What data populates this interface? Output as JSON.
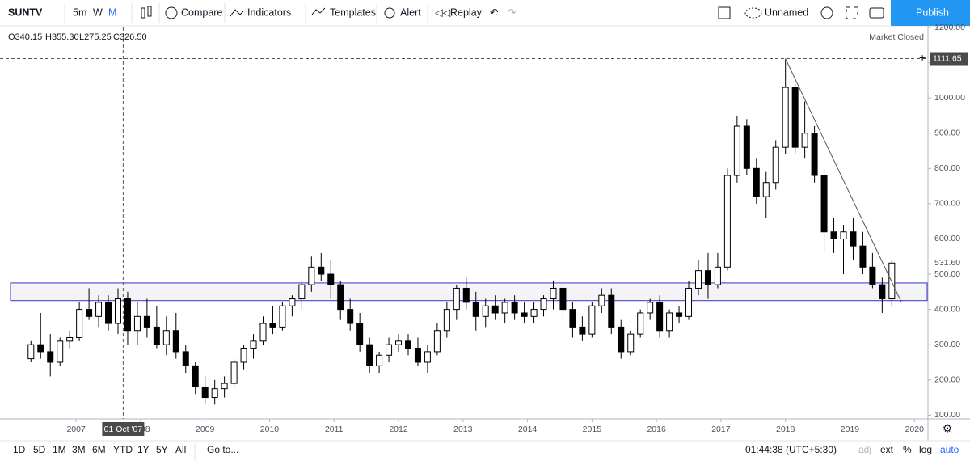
{
  "toolbar": {
    "symbol": "SUNTV",
    "intervals": [
      "5m",
      "W",
      "M"
    ],
    "compare": "Compare",
    "indicators": "Indicators",
    "templates": "Templates",
    "alert": "Alert",
    "replay": "Replay",
    "layout": "Unnamed",
    "publish": "Publish"
  },
  "legend": {
    "open": "O340.15",
    "high": "H355.30",
    "low": "L275.25",
    "close": "C326.50",
    "status": "Market Closed"
  },
  "bottombar": {
    "ranges": [
      "1D",
      "5D",
      "1M",
      "3M",
      "6M",
      "YTD",
      "1Y",
      "5Y",
      "All"
    ],
    "goto": "Go to...",
    "clock": "01:44:38 (UTC+5:30)",
    "options": [
      "adj",
      "ext",
      "%",
      "log",
      "auto"
    ]
  },
  "chart_data": {
    "type": "candlestick",
    "xlim": [
      2005.82,
      2020.21
    ],
    "xticks": [
      2007,
      2008,
      2009,
      2010,
      2011,
      2012,
      2013,
      2014,
      2015,
      2016,
      2017,
      2018,
      2019,
      2020
    ],
    "ylim": [
      89.3,
      1200
    ],
    "yticks": [
      {
        "value": 100,
        "label": "100.00"
      },
      {
        "value": 200,
        "label": "200.00"
      },
      {
        "value": 300,
        "label": "300.00"
      },
      {
        "value": 400,
        "label": "400.00"
      },
      {
        "value": 500,
        "label": "500.00"
      },
      {
        "value": 600,
        "label": "600.00"
      },
      {
        "value": 700,
        "label": "700.00"
      },
      {
        "value": 800,
        "label": "800.00"
      },
      {
        "value": 900,
        "label": "900.00"
      },
      {
        "value": 1000,
        "label": "1000.00"
      },
      {
        "value": 1100,
        "label": "1100.00"
      },
      {
        "value": 1200,
        "label": "1200.00"
      }
    ],
    "grid": false,
    "up_color": "#ffffff",
    "down_color": "#000000",
    "zone": {
      "low": 425,
      "high": 475,
      "color": "#3333cc"
    },
    "high_line": {
      "value": 1111.65,
      "label": "1111.65"
    },
    "last_price": {
      "value": 531.6,
      "label": "531.60"
    },
    "trendline": {
      "x": [
        2018.0,
        2019.8
      ],
      "y": [
        1111.65,
        420
      ],
      "color": "#555555"
    },
    "crosshair": {
      "x": 2007.73,
      "label": "01 Oct '07"
    },
    "candles": [
      {
        "x": 2006.3,
        "open": 260,
        "high": 310,
        "low": 250,
        "close": 300
      },
      {
        "x": 2006.45,
        "open": 300,
        "high": 390,
        "low": 260,
        "close": 280
      },
      {
        "x": 2006.6,
        "open": 280,
        "high": 330,
        "low": 210,
        "close": 250
      },
      {
        "x": 2006.75,
        "open": 250,
        "high": 320,
        "low": 240,
        "close": 310
      },
      {
        "x": 2006.9,
        "open": 310,
        "high": 340,
        "low": 290,
        "close": 320
      },
      {
        "x": 2007.05,
        "open": 320,
        "high": 420,
        "low": 310,
        "close": 400
      },
      {
        "x": 2007.2,
        "open": 400,
        "high": 460,
        "low": 370,
        "close": 380
      },
      {
        "x": 2007.35,
        "open": 380,
        "high": 440,
        "low": 350,
        "close": 420
      },
      {
        "x": 2007.5,
        "open": 420,
        "high": 440,
        "low": 340,
        "close": 360
      },
      {
        "x": 2007.65,
        "open": 360,
        "high": 460,
        "low": 330,
        "close": 430
      },
      {
        "x": 2007.8,
        "open": 430,
        "high": 450,
        "low": 300,
        "close": 340
      },
      {
        "x": 2007.95,
        "open": 340,
        "high": 420,
        "low": 300,
        "close": 380
      },
      {
        "x": 2008.1,
        "open": 380,
        "high": 430,
        "low": 320,
        "close": 350
      },
      {
        "x": 2008.25,
        "open": 350,
        "high": 410,
        "low": 290,
        "close": 300
      },
      {
        "x": 2008.4,
        "open": 300,
        "high": 380,
        "low": 270,
        "close": 340
      },
      {
        "x": 2008.55,
        "open": 340,
        "high": 390,
        "low": 260,
        "close": 280
      },
      {
        "x": 2008.7,
        "open": 280,
        "high": 300,
        "low": 220,
        "close": 240
      },
      {
        "x": 2008.85,
        "open": 240,
        "high": 250,
        "low": 160,
        "close": 180
      },
      {
        "x": 2009.0,
        "open": 180,
        "high": 210,
        "low": 130,
        "close": 150
      },
      {
        "x": 2009.15,
        "open": 150,
        "high": 200,
        "low": 130,
        "close": 175
      },
      {
        "x": 2009.3,
        "open": 175,
        "high": 210,
        "low": 150,
        "close": 190
      },
      {
        "x": 2009.45,
        "open": 190,
        "high": 260,
        "low": 180,
        "close": 250
      },
      {
        "x": 2009.6,
        "open": 250,
        "high": 300,
        "low": 230,
        "close": 290
      },
      {
        "x": 2009.75,
        "open": 290,
        "high": 330,
        "low": 260,
        "close": 310
      },
      {
        "x": 2009.9,
        "open": 310,
        "high": 380,
        "low": 300,
        "close": 360
      },
      {
        "x": 2010.05,
        "open": 360,
        "high": 410,
        "low": 330,
        "close": 350
      },
      {
        "x": 2010.2,
        "open": 350,
        "high": 420,
        "low": 340,
        "close": 410
      },
      {
        "x": 2010.35,
        "open": 410,
        "high": 440,
        "low": 380,
        "close": 430
      },
      {
        "x": 2010.5,
        "open": 430,
        "high": 480,
        "low": 400,
        "close": 470
      },
      {
        "x": 2010.65,
        "open": 470,
        "high": 550,
        "low": 450,
        "close": 520
      },
      {
        "x": 2010.8,
        "open": 520,
        "high": 560,
        "low": 480,
        "close": 500
      },
      {
        "x": 2010.95,
        "open": 500,
        "high": 540,
        "low": 430,
        "close": 470
      },
      {
        "x": 2011.1,
        "open": 470,
        "high": 480,
        "low": 370,
        "close": 400
      },
      {
        "x": 2011.25,
        "open": 400,
        "high": 430,
        "low": 340,
        "close": 360
      },
      {
        "x": 2011.4,
        "open": 360,
        "high": 390,
        "low": 280,
        "close": 300
      },
      {
        "x": 2011.55,
        "open": 300,
        "high": 320,
        "low": 220,
        "close": 240
      },
      {
        "x": 2011.7,
        "open": 240,
        "high": 280,
        "low": 220,
        "close": 270
      },
      {
        "x": 2011.85,
        "open": 270,
        "high": 320,
        "low": 250,
        "close": 300
      },
      {
        "x": 2012.0,
        "open": 300,
        "high": 330,
        "low": 280,
        "close": 310
      },
      {
        "x": 2012.15,
        "open": 310,
        "high": 330,
        "low": 270,
        "close": 290
      },
      {
        "x": 2012.3,
        "open": 290,
        "high": 320,
        "low": 240,
        "close": 250
      },
      {
        "x": 2012.45,
        "open": 250,
        "high": 300,
        "low": 220,
        "close": 280
      },
      {
        "x": 2012.6,
        "open": 280,
        "high": 360,
        "low": 270,
        "close": 340
      },
      {
        "x": 2012.75,
        "open": 340,
        "high": 420,
        "low": 320,
        "close": 400
      },
      {
        "x": 2012.9,
        "open": 400,
        "high": 470,
        "low": 370,
        "close": 460
      },
      {
        "x": 2013.05,
        "open": 460,
        "high": 490,
        "low": 400,
        "close": 420
      },
      {
        "x": 2013.2,
        "open": 420,
        "high": 450,
        "low": 340,
        "close": 380
      },
      {
        "x": 2013.35,
        "open": 380,
        "high": 430,
        "low": 350,
        "close": 410
      },
      {
        "x": 2013.5,
        "open": 410,
        "high": 440,
        "low": 370,
        "close": 390
      },
      {
        "x": 2013.65,
        "open": 390,
        "high": 430,
        "low": 360,
        "close": 420
      },
      {
        "x": 2013.8,
        "open": 420,
        "high": 440,
        "low": 370,
        "close": 390
      },
      {
        "x": 2013.95,
        "open": 390,
        "high": 420,
        "low": 360,
        "close": 380
      },
      {
        "x": 2014.1,
        "open": 380,
        "high": 420,
        "low": 360,
        "close": 400
      },
      {
        "x": 2014.25,
        "open": 400,
        "high": 440,
        "low": 380,
        "close": 430
      },
      {
        "x": 2014.4,
        "open": 430,
        "high": 480,
        "low": 400,
        "close": 460
      },
      {
        "x": 2014.55,
        "open": 460,
        "high": 470,
        "low": 380,
        "close": 400
      },
      {
        "x": 2014.7,
        "open": 400,
        "high": 420,
        "low": 320,
        "close": 350
      },
      {
        "x": 2014.85,
        "open": 350,
        "high": 380,
        "low": 310,
        "close": 330
      },
      {
        "x": 2015.0,
        "open": 330,
        "high": 420,
        "low": 320,
        "close": 410
      },
      {
        "x": 2015.15,
        "open": 410,
        "high": 460,
        "low": 390,
        "close": 440
      },
      {
        "x": 2015.3,
        "open": 440,
        "high": 460,
        "low": 330,
        "close": 350
      },
      {
        "x": 2015.45,
        "open": 350,
        "high": 370,
        "low": 260,
        "close": 280
      },
      {
        "x": 2015.6,
        "open": 280,
        "high": 340,
        "low": 270,
        "close": 330
      },
      {
        "x": 2015.75,
        "open": 330,
        "high": 400,
        "low": 320,
        "close": 390
      },
      {
        "x": 2015.9,
        "open": 390,
        "high": 430,
        "low": 370,
        "close": 420
      },
      {
        "x": 2016.05,
        "open": 420,
        "high": 440,
        "low": 320,
        "close": 340
      },
      {
        "x": 2016.2,
        "open": 340,
        "high": 400,
        "low": 320,
        "close": 390
      },
      {
        "x": 2016.35,
        "open": 390,
        "high": 410,
        "low": 360,
        "close": 380
      },
      {
        "x": 2016.5,
        "open": 380,
        "high": 480,
        "low": 370,
        "close": 460
      },
      {
        "x": 2016.65,
        "open": 460,
        "high": 540,
        "low": 440,
        "close": 510
      },
      {
        "x": 2016.8,
        "open": 510,
        "high": 560,
        "low": 430,
        "close": 470
      },
      {
        "x": 2016.95,
        "open": 470,
        "high": 560,
        "low": 460,
        "close": 520
      },
      {
        "x": 2017.1,
        "open": 520,
        "high": 800,
        "low": 510,
        "close": 780
      },
      {
        "x": 2017.25,
        "open": 780,
        "high": 950,
        "low": 760,
        "close": 920
      },
      {
        "x": 2017.4,
        "open": 920,
        "high": 940,
        "low": 780,
        "close": 800
      },
      {
        "x": 2017.55,
        "open": 800,
        "high": 830,
        "low": 700,
        "close": 720
      },
      {
        "x": 2017.7,
        "open": 720,
        "high": 790,
        "low": 660,
        "close": 760
      },
      {
        "x": 2017.85,
        "open": 760,
        "high": 880,
        "low": 740,
        "close": 860
      },
      {
        "x": 2018.0,
        "open": 860,
        "high": 1111.65,
        "low": 840,
        "close": 1030
      },
      {
        "x": 2018.15,
        "open": 1030,
        "high": 1040,
        "low": 840,
        "close": 860
      },
      {
        "x": 2018.3,
        "open": 860,
        "high": 990,
        "low": 830,
        "close": 900
      },
      {
        "x": 2018.45,
        "open": 900,
        "high": 920,
        "low": 760,
        "close": 780
      },
      {
        "x": 2018.6,
        "open": 780,
        "high": 800,
        "low": 560,
        "close": 620
      },
      {
        "x": 2018.75,
        "open": 620,
        "high": 660,
        "low": 560,
        "close": 600
      },
      {
        "x": 2018.9,
        "open": 600,
        "high": 640,
        "low": 500,
        "close": 620
      },
      {
        "x": 2019.05,
        "open": 620,
        "high": 660,
        "low": 540,
        "close": 580
      },
      {
        "x": 2019.2,
        "open": 580,
        "high": 620,
        "low": 500,
        "close": 520
      },
      {
        "x": 2019.35,
        "open": 520,
        "high": 560,
        "low": 460,
        "close": 470
      },
      {
        "x": 2019.5,
        "open": 470,
        "high": 490,
        "low": 390,
        "close": 430
      },
      {
        "x": 2019.65,
        "open": 430,
        "high": 540,
        "low": 410,
        "close": 531.6
      }
    ]
  }
}
